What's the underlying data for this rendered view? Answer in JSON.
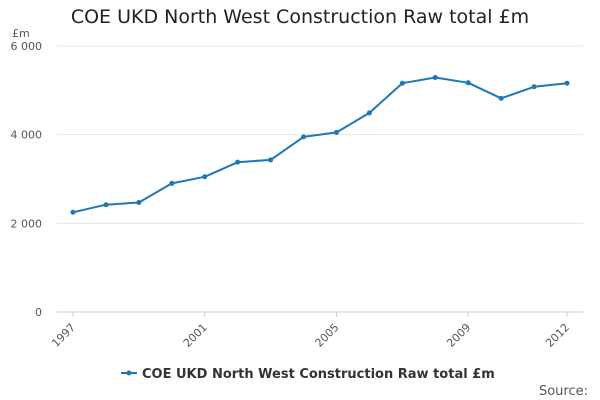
{
  "chart_data": {
    "type": "line",
    "title": "COE UKD North West Construction Raw total £m",
    "ylabel": "£m",
    "xlabel": "",
    "ylim": [
      0,
      6000
    ],
    "yticks": [
      {
        "value": 0,
        "label": "0"
      },
      {
        "value": 2000,
        "label": "2 000"
      },
      {
        "value": 4000,
        "label": "4 000"
      },
      {
        "value": 6000,
        "label": "6 000"
      }
    ],
    "xlim": [
      1997,
      2012
    ],
    "xticks": [
      {
        "value": 1997,
        "label": "1997"
      },
      {
        "value": 2001,
        "label": "2001"
      },
      {
        "value": 2005,
        "label": "2005"
      },
      {
        "value": 2009,
        "label": "2009"
      },
      {
        "value": 2012,
        "label": "2012"
      }
    ],
    "grid": "horizontal",
    "legend_position": "bottom",
    "series": [
      {
        "name": "COE UKD North West Construction Raw total £m",
        "color": "#1f77b4",
        "x": [
          1997,
          1998,
          1999,
          2000,
          2001,
          2002,
          2003,
          2004,
          2005,
          2006,
          2007,
          2008,
          2009,
          2010,
          2011,
          2012
        ],
        "values": [
          2250,
          2420,
          2470,
          2900,
          3050,
          3380,
          3430,
          3950,
          4050,
          4490,
          5160,
          5290,
          5170,
          4820,
          5080,
          5160
        ]
      }
    ]
  },
  "source_label": "Source:"
}
